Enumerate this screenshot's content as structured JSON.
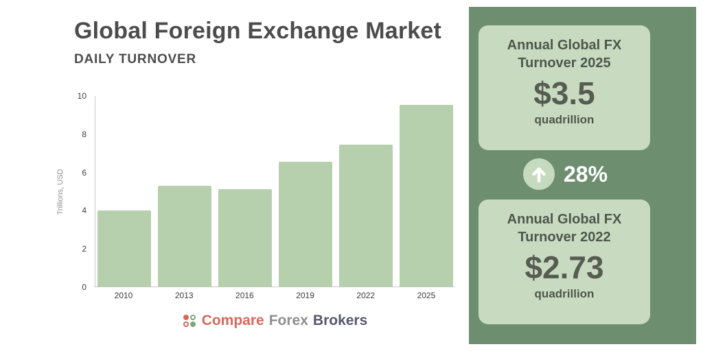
{
  "header": {
    "title": "Global Foreign Exchange Market",
    "subtitle": "DAILY TURNOVER"
  },
  "chart_data": {
    "type": "bar",
    "title": "Global Foreign Exchange Market",
    "subtitle": "DAILY TURNOVER",
    "categories": [
      "2010",
      "2013",
      "2016",
      "2019",
      "2022",
      "2025"
    ],
    "values": [
      4.0,
      5.3,
      5.1,
      6.55,
      7.45,
      9.55
    ],
    "xlabel": "",
    "ylabel": "Trillions, USD",
    "ylim": [
      0,
      10
    ],
    "yticks": [
      0,
      2,
      4,
      6,
      8,
      10
    ],
    "grid": false,
    "legend": "none",
    "bar_color": "#b6cfad"
  },
  "sidebar": {
    "top_card": {
      "title_line1": "Annual Global FX",
      "title_line2": "Turnover 2025",
      "value": "$3.5",
      "unit": "quadrillion"
    },
    "change_badge": {
      "icon": "arrow-up-icon",
      "value": "28%"
    },
    "bottom_card": {
      "title_line1": "Annual Global FX",
      "title_line2": "Turnover 2022",
      "value": "$2.73",
      "unit": "quadrillion"
    }
  },
  "footer": {
    "brand": {
      "word1": "Compare",
      "word2": "Forex",
      "word3": "Brokers"
    }
  },
  "colors": {
    "panel_bg": "#6d8f70",
    "card_bg": "#c8dbc1",
    "bar_fill": "#b6cfad",
    "heading_text": "#4c4c4c",
    "card_text": "#4d564b",
    "value_text": "#575c52",
    "percent_text": "#ffffff",
    "brand_compare": "#d6685c",
    "brand_forex": "#8e8e8e",
    "brand_brokers": "#55566f"
  }
}
